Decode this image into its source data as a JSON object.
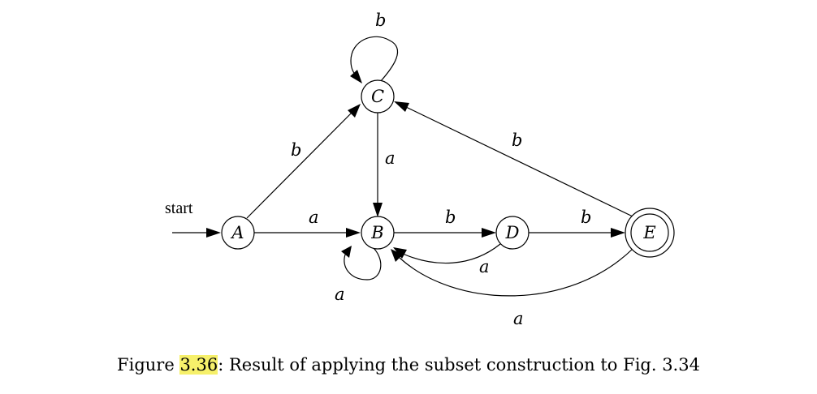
{
  "diagram": {
    "start_label": "start",
    "states": {
      "A": "A",
      "B": "B",
      "C": "C",
      "D": "D",
      "E": "E"
    },
    "edge_labels": {
      "A_C": "b",
      "C_C": "b",
      "A_B": "a",
      "C_B": "a",
      "B_D": "b",
      "D_E": "b",
      "E_C": "b",
      "D_B": "a",
      "E_B": "a",
      "B_B": "a"
    },
    "accepting_states": [
      "E"
    ],
    "start_state": "A"
  },
  "caption": {
    "prefix": "Figure ",
    "ref": "3.36",
    "text": ": Result of applying the subset construction to Fig. 3.34",
    "highlight_color": "#f6f06a"
  }
}
